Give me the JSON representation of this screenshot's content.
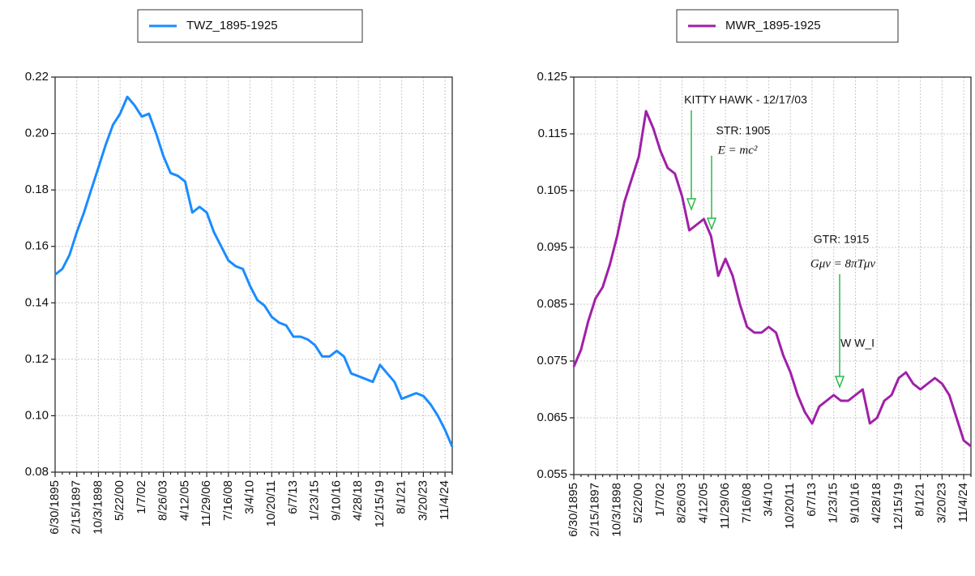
{
  "chart_data": [
    {
      "type": "line",
      "legend_position": "top",
      "grid": true,
      "categories": [
        "6/30/1895",
        null,
        null,
        "2/15/1897",
        null,
        null,
        "10/3/1898",
        null,
        null,
        "5/22/00",
        null,
        null,
        "1/7/02",
        null,
        null,
        "8/26/03",
        null,
        null,
        "4/12/05",
        null,
        null,
        "11/29/06",
        null,
        null,
        "7/16/08",
        null,
        null,
        "3/4/10",
        null,
        null,
        "10/20/11",
        null,
        null,
        "6/7/13",
        null,
        null,
        "1/23/15",
        null,
        null,
        "9/10/16",
        null,
        null,
        "4/28/18",
        null,
        null,
        "12/15/19",
        null,
        null,
        "8/1/21",
        null,
        null,
        "3/20/23",
        null,
        null,
        "11/4/24",
        null
      ],
      "series": [
        {
          "name": "TWZ_1895-1925",
          "color": "#1a8cff",
          "values": [
            0.15,
            0.152,
            0.157,
            0.165,
            0.172,
            0.18,
            0.188,
            0.196,
            0.203,
            0.207,
            0.213,
            0.21,
            0.206,
            0.207,
            0.2,
            0.192,
            0.186,
            0.185,
            0.183,
            0.172,
            0.174,
            0.172,
            0.165,
            0.16,
            0.155,
            0.153,
            0.152,
            0.146,
            0.141,
            0.139,
            0.135,
            0.133,
            0.132,
            0.128,
            0.128,
            0.127,
            0.125,
            0.121,
            0.121,
            0.123,
            0.121,
            0.115,
            0.114,
            0.113,
            0.112,
            0.118,
            0.115,
            0.112,
            0.106,
            0.107,
            0.108,
            0.107,
            0.104,
            0.1,
            0.095,
            0.089
          ]
        }
      ],
      "ylim": [
        0.08,
        0.22
      ],
      "yticks": [
        0.08,
        {
          "value": 0.1,
          "label": "0.10"
        },
        0.12,
        0.14,
        0.16,
        0.18,
        {
          "value": 0.2,
          "label": "0.20"
        },
        0.22
      ]
    },
    {
      "type": "line",
      "legend_position": "top",
      "grid": true,
      "categories": [
        "6/30/1895",
        null,
        null,
        "2/15/1897",
        null,
        null,
        "10/3/1898",
        null,
        null,
        "5/22/00",
        null,
        null,
        "1/7/02",
        null,
        null,
        "8/26/03",
        null,
        null,
        "4/12/05",
        null,
        null,
        "11/29/06",
        null,
        null,
        "7/16/08",
        null,
        null,
        "3/4/10",
        null,
        null,
        "10/20/11",
        null,
        null,
        "6/7/13",
        null,
        null,
        "1/23/15",
        null,
        null,
        "9/10/16",
        null,
        null,
        "4/28/18",
        null,
        null,
        "12/15/19",
        null,
        null,
        "8/1/21",
        null,
        null,
        "3/20/23",
        null,
        null,
        "11/4/24",
        null
      ],
      "series": [
        {
          "name": "MWR_1895-1925",
          "color": "#a020a8",
          "values": [
            0.074,
            0.077,
            0.082,
            0.086,
            0.088,
            0.092,
            0.097,
            0.103,
            0.107,
            0.111,
            0.119,
            0.116,
            0.112,
            0.109,
            0.108,
            0.104,
            0.098,
            0.099,
            0.1,
            0.097,
            0.09,
            0.093,
            0.09,
            0.085,
            0.081,
            0.08,
            0.08,
            0.081,
            0.08,
            0.076,
            0.073,
            0.069,
            0.066,
            0.064,
            0.067,
            0.068,
            0.069,
            0.068,
            0.068,
            0.069,
            0.07,
            0.064,
            0.065,
            0.068,
            0.069,
            0.072,
            0.073,
            0.071,
            0.07,
            0.071,
            0.072,
            0.071,
            0.069,
            0.065,
            0.061,
            0.06
          ]
        }
      ],
      "ylim": [
        0.055,
        0.125
      ],
      "yticks": [
        0.055,
        0.065,
        0.075,
        0.085,
        0.095,
        0.105,
        0.115,
        0.125
      ],
      "annotations": [
        "KITTY HAWK - 12/17/03",
        "STR: 1905",
        "E = mc²",
        "GTR: 1915",
        "Gμν = 8πTμν",
        "W W_I"
      ]
    }
  ]
}
